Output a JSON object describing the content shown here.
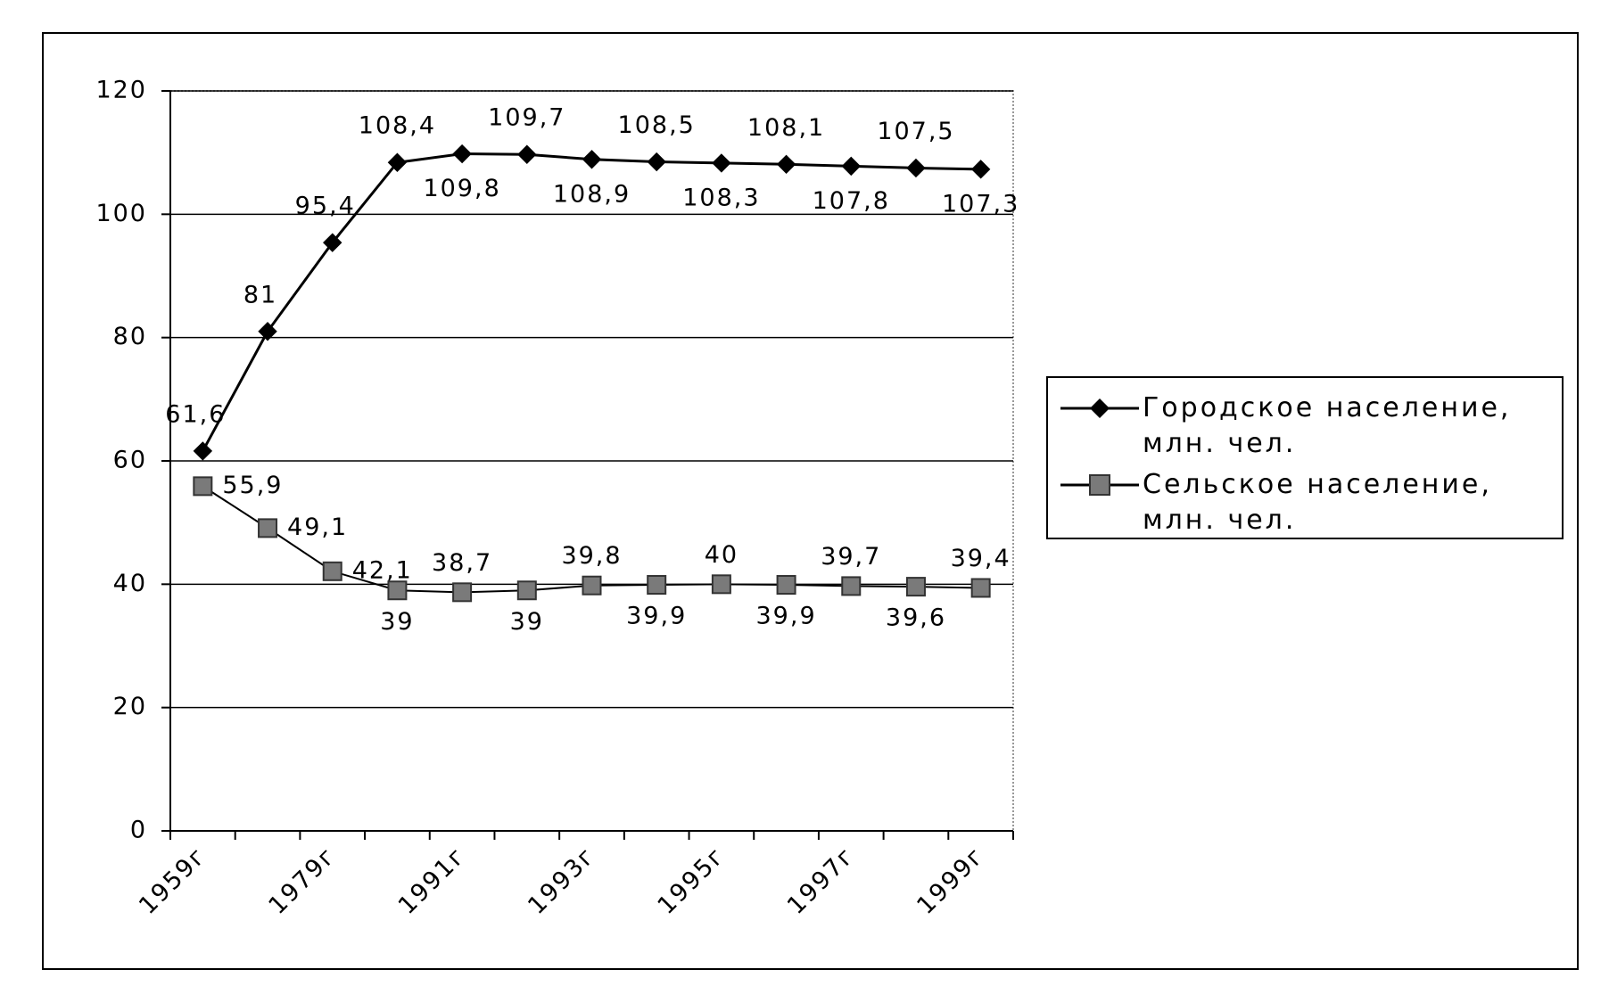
{
  "chart_data": {
    "type": "line",
    "categories": [
      "1959г",
      null,
      "1979г",
      null,
      "1991г",
      null,
      "1993г",
      null,
      "1995г",
      null,
      "1997г",
      null,
      "1999г"
    ],
    "series": [
      {
        "name": "Городское население, млн. чел.",
        "color": "#000000",
        "marker": "diamond",
        "values": [
          61.6,
          81,
          95.4,
          108.4,
          109.8,
          109.7,
          108.9,
          108.5,
          108.3,
          108.1,
          107.8,
          107.5,
          107.3
        ],
        "value_labels": [
          "61,6",
          "81",
          "95,4",
          "108,4",
          "109,8",
          "109,7",
          "108,9",
          "108,5",
          "108,3",
          "108,1",
          "107,8",
          "107,5",
          "107,3"
        ]
      },
      {
        "name": "Сельское население, млн. чел.",
        "color": "#7a7a7a",
        "marker": "square",
        "values": [
          55.9,
          49.1,
          42.1,
          39,
          38.7,
          39,
          39.8,
          39.9,
          40,
          39.9,
          39.7,
          39.6,
          39.4
        ],
        "value_labels": [
          "55,9",
          "49,1",
          "42,1",
          "39",
          "38,7",
          "39",
          "39,8",
          "39,9",
          "40",
          "39,9",
          "39,7",
          "39,6",
          "39,4"
        ]
      }
    ],
    "ylim": [
      0,
      120
    ],
    "yticks": [
      0,
      20,
      40,
      60,
      80,
      100,
      120
    ],
    "grid": true,
    "legend": "right"
  }
}
